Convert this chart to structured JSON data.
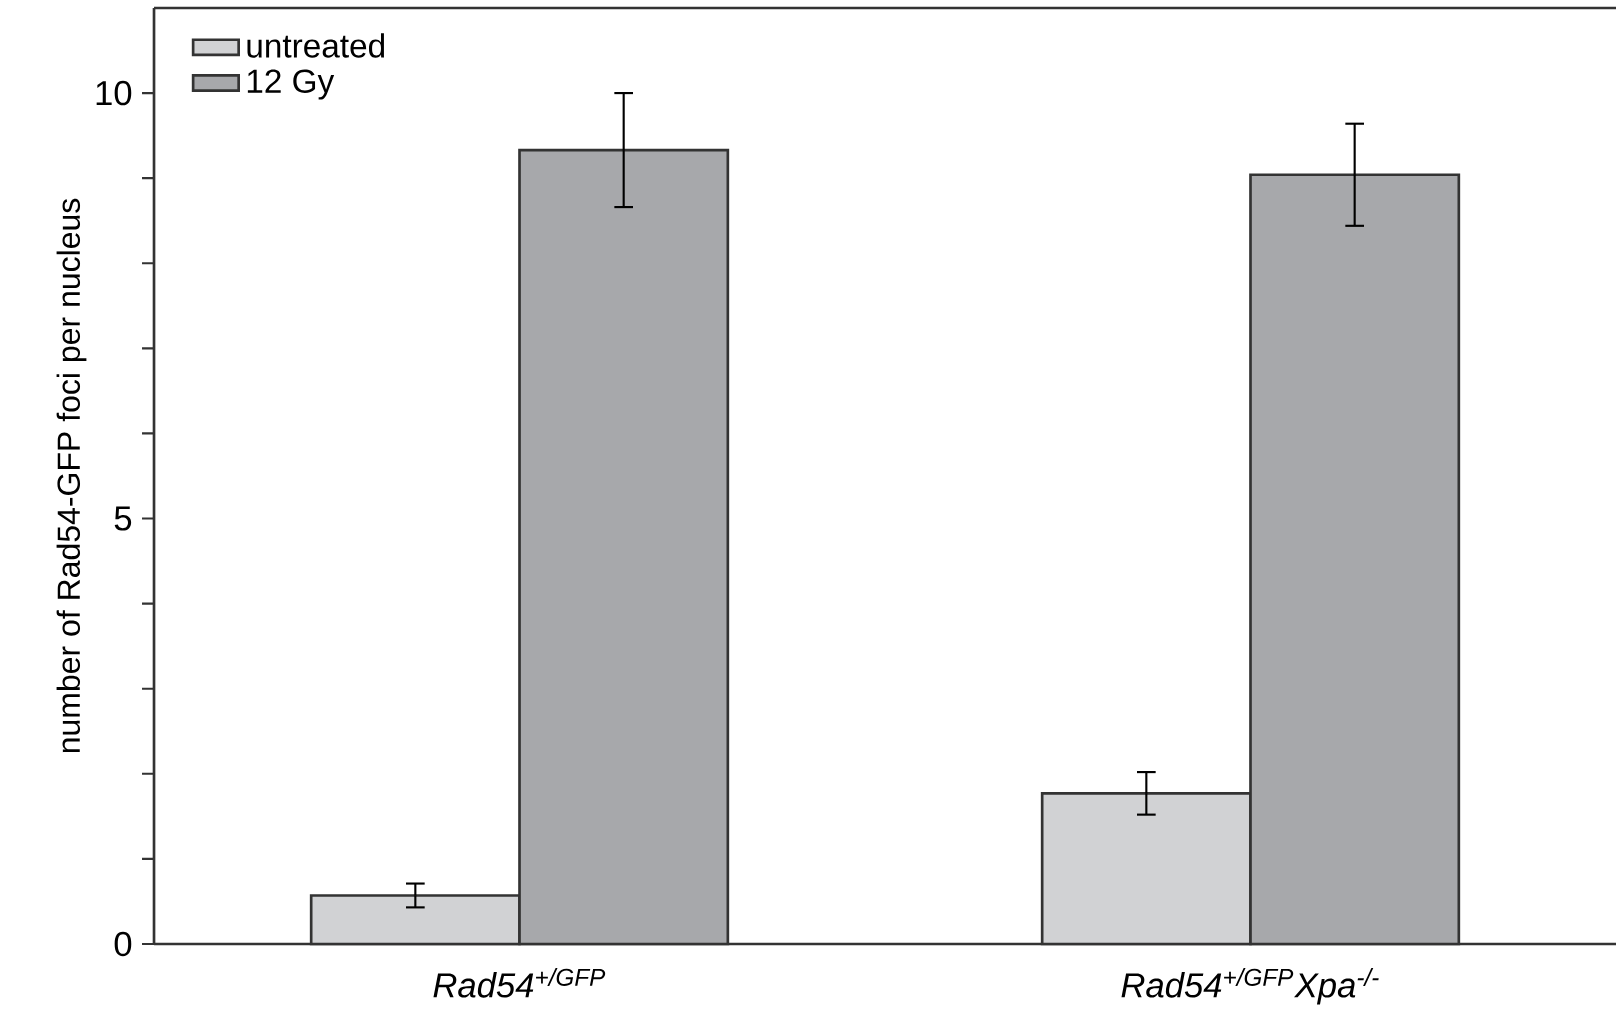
{
  "chart_data": {
    "type": "bar",
    "ylabel": "number of Rad54-GFP foci per nucleus",
    "categories": [
      "*Rad54*$^{+/GFP}$",
      "*Rad54*$^{+/GFP}$*Xpa*$^{-/-}$"
    ],
    "series": [
      {
        "name": "untreated",
        "color": "#d1d2d4",
        "values": [
          0.57,
          1.77
        ],
        "errors": [
          0.14,
          0.25
        ]
      },
      {
        "name": "12 Gy",
        "color": "#a7a8ab",
        "values": [
          9.33,
          9.04
        ],
        "errors": [
          0.67,
          0.6
        ]
      }
    ],
    "ylim": [
      0,
      11
    ],
    "yticks": [
      0,
      {
        "value": 1,
        "label": null
      },
      {
        "value": 2,
        "label": null
      },
      {
        "value": 3,
        "label": null
      },
      {
        "value": 4,
        "label": null
      },
      5,
      {
        "value": 6,
        "label": null
      },
      {
        "value": 7,
        "label": null
      },
      {
        "value": 8,
        "label": null
      },
      {
        "value": 9,
        "label": null
      },
      10
    ],
    "legend": "top left"
  }
}
